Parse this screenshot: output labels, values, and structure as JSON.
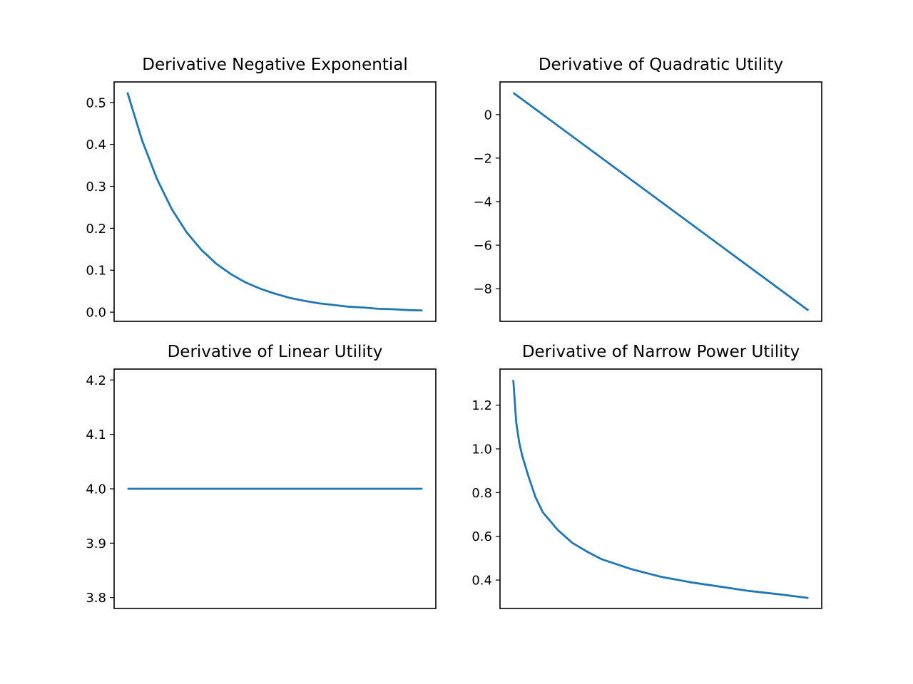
{
  "chart_data": [
    {
      "type": "line",
      "title": "Derivative Negative Exponential",
      "xlabel": "",
      "ylabel": "",
      "x_ticks_visible": false,
      "x_range": [
        0,
        10
      ],
      "ylim": [
        -0.0219,
        0.5489
      ],
      "yticks": [
        0.0,
        0.1,
        0.2,
        0.3,
        0.4,
        0.5
      ],
      "ytick_labels": [
        "0.0",
        "0.1",
        "0.2",
        "0.3",
        "0.4",
        "0.5"
      ],
      "grid": false,
      "legend": "none",
      "series": [
        {
          "color": "#1f77b4",
          "x": [
            0,
            0.5,
            1,
            1.5,
            2,
            2.5,
            3,
            3.5,
            4,
            4.5,
            5,
            5.5,
            6,
            6.5,
            7,
            7.5,
            8,
            8.5,
            9,
            9.5,
            10
          ],
          "y": [
            0.524,
            0.409,
            0.318,
            0.246,
            0.191,
            0.149,
            0.116,
            0.091,
            0.071,
            0.056,
            0.044,
            0.034,
            0.027,
            0.021,
            0.017,
            0.013,
            0.011,
            0.008,
            0.007,
            0.005,
            0.004
          ]
        }
      ]
    },
    {
      "type": "line",
      "title": "Derivative of Quadratic Utility",
      "xlabel": "",
      "ylabel": "",
      "x_ticks_visible": false,
      "x_range": [
        0,
        10
      ],
      "ylim": [
        -9.5,
        1.5
      ],
      "yticks": [
        0,
        -2,
        -4,
        -6,
        -8
      ],
      "ytick_labels": [
        "0",
        "−2",
        "−4",
        "−6",
        "−8"
      ],
      "grid": false,
      "legend": "none",
      "series": [
        {
          "color": "#1f77b4",
          "x": [
            0,
            10
          ],
          "y": [
            1.0,
            -9.0
          ]
        }
      ]
    },
    {
      "type": "line",
      "title": "Derivative of Linear Utility",
      "xlabel": "",
      "ylabel": "",
      "x_ticks_visible": false,
      "x_range": [
        0,
        10
      ],
      "ylim": [
        3.78,
        4.22
      ],
      "yticks": [
        4.2,
        4.1,
        4.0,
        3.9,
        3.8
      ],
      "ytick_labels": [
        "4.2",
        "4.1",
        "4.0",
        "3.9",
        "3.8"
      ],
      "grid": false,
      "legend": "none",
      "series": [
        {
          "color": "#1f77b4",
          "x": [
            0,
            10
          ],
          "y": [
            4.0,
            4.0
          ]
        }
      ]
    },
    {
      "type": "line",
      "title": "Derivative of Narrow Power Utility",
      "xlabel": "",
      "ylabel": "",
      "x_ticks_visible": false,
      "x_range": [
        0,
        10
      ],
      "ylim": [
        0.27,
        1.365
      ],
      "yticks": [
        1.2,
        1.0,
        0.8,
        0.6,
        0.4
      ],
      "ytick_labels": [
        "1.2",
        "1.0",
        "0.8",
        "0.6",
        "0.4"
      ],
      "grid": false,
      "legend": "none",
      "series": [
        {
          "color": "#1f77b4",
          "x": [
            0,
            0.1,
            0.2,
            0.3,
            0.5,
            0.75,
            1,
            1.5,
            2,
            2.5,
            3,
            4,
            5,
            6,
            7,
            8,
            9,
            10
          ],
          "y": [
            1.315,
            1.12,
            1.03,
            0.97,
            0.88,
            0.78,
            0.71,
            0.63,
            0.57,
            0.53,
            0.495,
            0.45,
            0.415,
            0.39,
            0.37,
            0.35,
            0.335,
            0.318
          ]
        }
      ]
    }
  ]
}
